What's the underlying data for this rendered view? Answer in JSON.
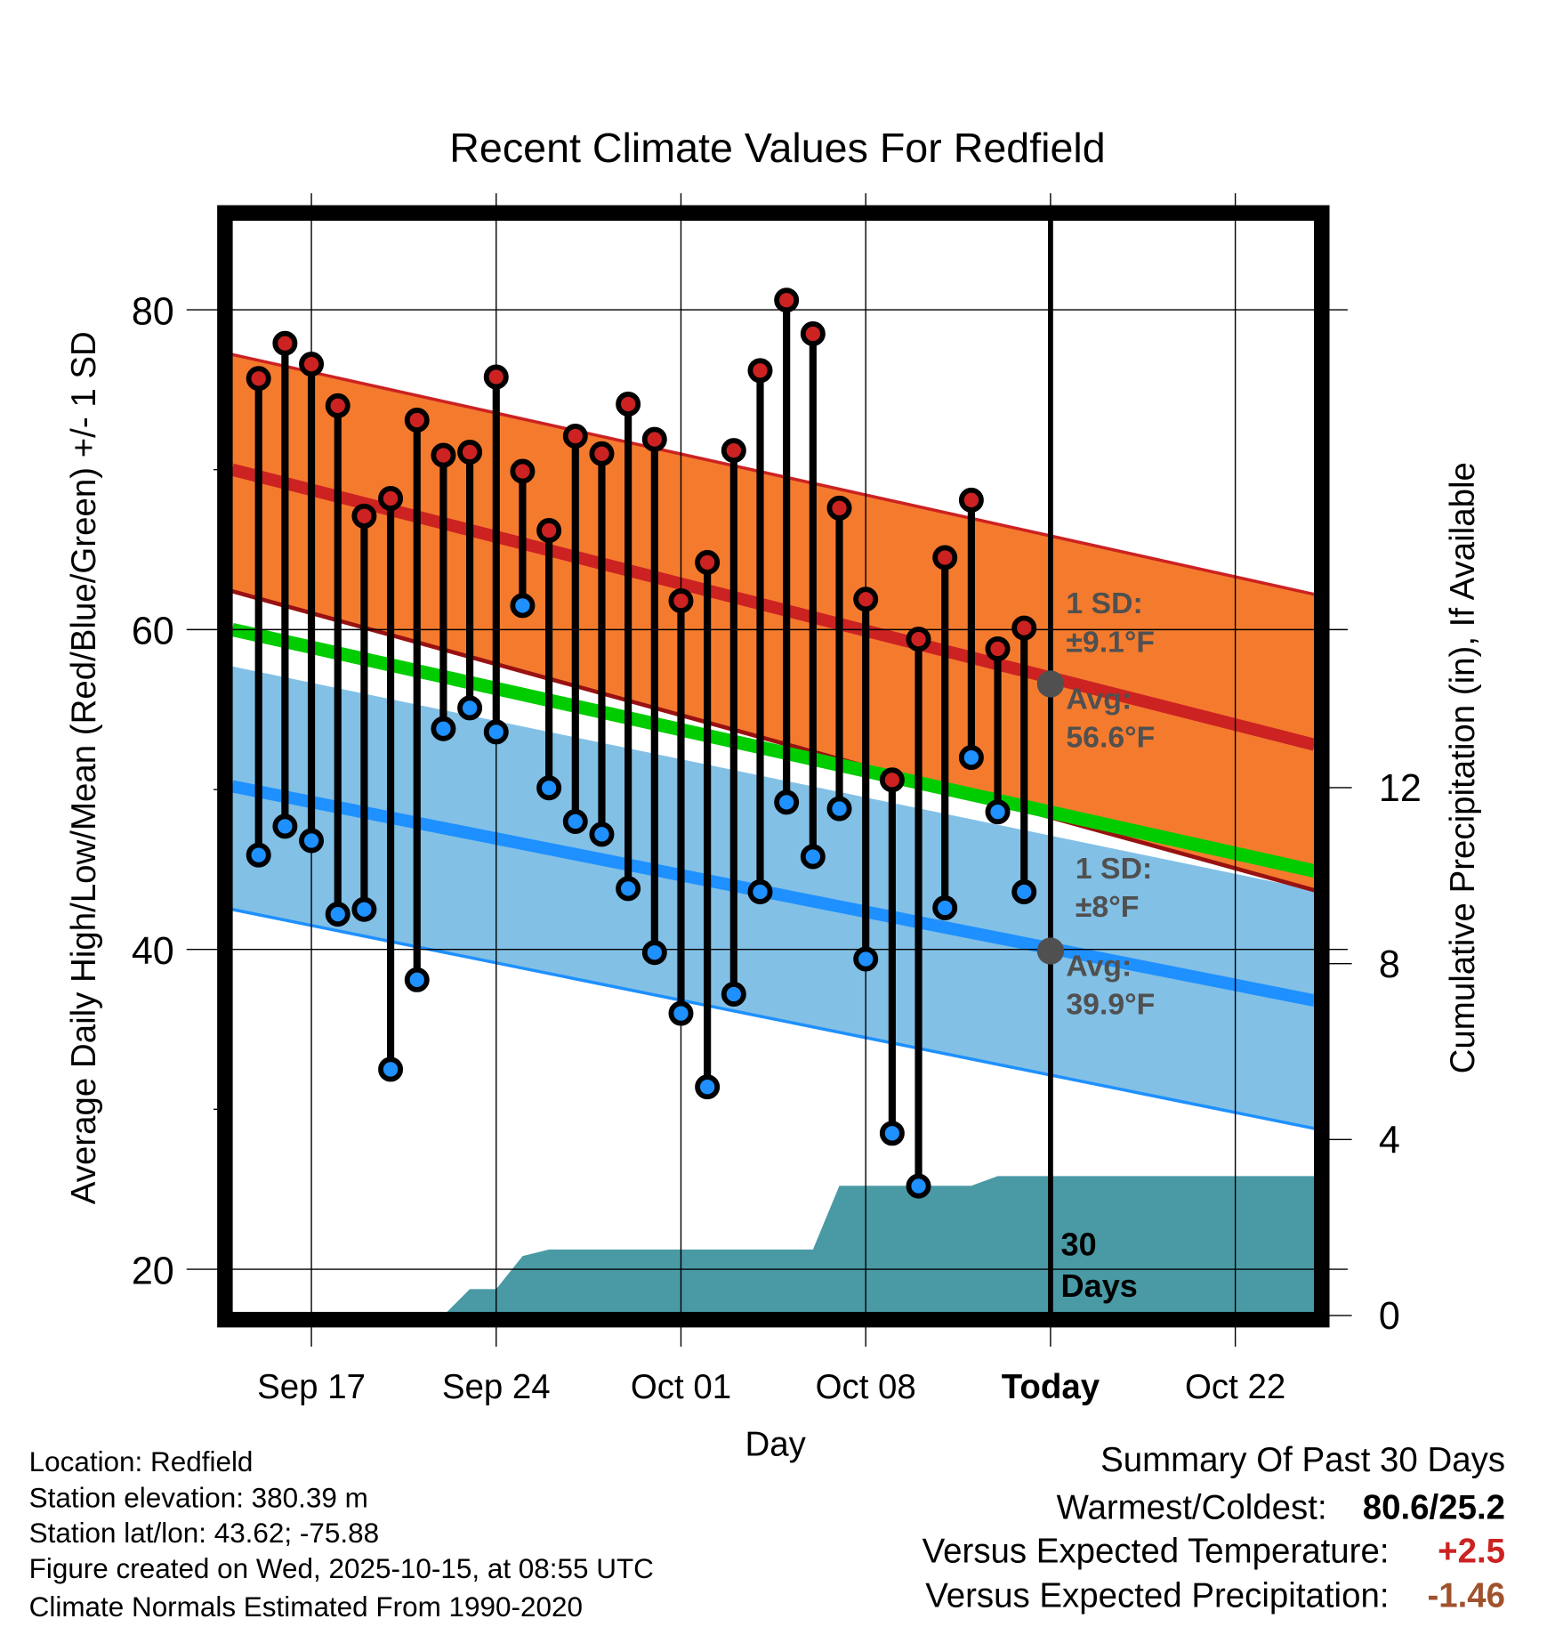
{
  "chart_data": {
    "type": "line",
    "title": "Recent Climate Values For Redfield",
    "xlabel": "Day",
    "ylabel": "Average Daily High/Low/Mean (Red/Blue/Green) +/- 1 SD",
    "y2label": "Cumulative Precipitation (in), If Available",
    "xlim": [
      "2025-09-14",
      "2025-10-25"
    ],
    "ylim": [
      17.3,
      85.6
    ],
    "y2lim": [
      0,
      24.9
    ],
    "yticks": [
      20,
      40,
      60,
      80
    ],
    "yminor": [
      30,
      50,
      70
    ],
    "y2ticks": [
      0,
      4,
      8,
      12
    ],
    "xticks": [
      {
        "date": "2025-09-17",
        "label": "Sep 17"
      },
      {
        "date": "2025-09-24",
        "label": "Sep 24"
      },
      {
        "date": "2025-10-01",
        "label": "Oct 01"
      },
      {
        "date": "2025-10-08",
        "label": "Oct 08"
      },
      {
        "date": "2025-10-15",
        "label": "Today"
      },
      {
        "date": "2025-10-22",
        "label": "Oct 22"
      }
    ],
    "today": "2025-10-15",
    "grid": true,
    "dates": [
      "2025-09-15",
      "2025-09-16",
      "2025-09-17",
      "2025-09-18",
      "2025-09-19",
      "2025-09-20",
      "2025-09-21",
      "2025-09-22",
      "2025-09-23",
      "2025-09-24",
      "2025-09-25",
      "2025-09-26",
      "2025-09-27",
      "2025-09-28",
      "2025-09-29",
      "2025-09-30",
      "2025-10-01",
      "2025-10-02",
      "2025-10-03",
      "2025-10-04",
      "2025-10-05",
      "2025-10-06",
      "2025-10-07",
      "2025-10-08",
      "2025-10-09",
      "2025-10-10",
      "2025-10-11",
      "2025-10-12",
      "2025-10-13",
      "2025-10-14"
    ],
    "series": [
      {
        "name": "Daily High",
        "color": "#cc2222",
        "values": [
          75.7,
          77.9,
          76.6,
          74.0,
          67.1,
          68.2,
          73.1,
          70.9,
          71.1,
          75.8,
          69.9,
          66.2,
          72.1,
          71.0,
          74.1,
          71.9,
          61.8,
          64.2,
          71.2,
          76.2,
          80.6,
          78.5,
          67.6,
          61.9,
          50.6,
          59.4,
          64.5,
          68.1,
          58.8,
          60.1
        ]
      },
      {
        "name": "Daily Low",
        "color": "#1e90ff",
        "values": [
          45.9,
          47.7,
          46.8,
          42.2,
          42.5,
          32.5,
          38.1,
          53.8,
          55.1,
          53.6,
          61.5,
          50.1,
          48.0,
          47.2,
          43.8,
          39.8,
          36.0,
          31.4,
          37.2,
          43.6,
          49.2,
          45.8,
          48.8,
          39.4,
          28.5,
          25.2,
          42.6,
          52.0,
          48.6,
          43.6
        ]
      },
      {
        "name": "Cumulative Precipitation",
        "color": "#4a9aa5",
        "axis": "right",
        "values": [
          0,
          0,
          0,
          0,
          0,
          0,
          0,
          0,
          0.6,
          0.6,
          1.35,
          1.5,
          1.5,
          1.5,
          1.5,
          1.5,
          1.5,
          1.5,
          1.5,
          1.5,
          1.5,
          1.5,
          2.95,
          2.95,
          2.95,
          2.95,
          2.95,
          2.95,
          3.17,
          3.17
        ]
      }
    ],
    "normals": {
      "dates": [
        "2025-09-14",
        "2025-10-25"
      ],
      "high_mean": [
        70.0,
        52.8
      ],
      "high_upper": [
        77.2,
        62.2
      ],
      "high_lower": [
        62.4,
        43.7
      ],
      "low_mean": [
        50.2,
        36.8
      ],
      "low_upper": [
        57.7,
        43.7
      ],
      "low_lower": [
        42.5,
        28.8
      ],
      "mean": [
        60.0,
        44.9
      ],
      "colors": {
        "high_band": "#f47b2e",
        "high_line": "#cc2222",
        "low_band": "#82c0e6",
        "low_line": "#1e90ff",
        "mean_line": "#00cc00",
        "precip": "#4a9aa5"
      }
    },
    "annotations": {
      "high_sd_label": "1 SD:",
      "high_sd_value": "±9.1°F",
      "high_avg_label": "Avg:",
      "high_avg_value": "56.6°F",
      "high_avg": 56.6,
      "low_sd_label": "1 SD:",
      "low_sd_value": "±8°F",
      "low_avg_label": "Avg:",
      "low_avg_value": "39.9°F",
      "low_avg": 39.9,
      "days_label_1": "30",
      "days_label_2": "Days"
    }
  },
  "info": {
    "location": "Location: Redfield",
    "elevation": "Station elevation: 380.39 m",
    "latlon": "Station lat/lon: 43.62; -75.88",
    "created": "Figure created on Wed, 2025-10-15, at 08:55 UTC",
    "normals": "Climate Normals Estimated From 1990-2020"
  },
  "summary": {
    "title": "Summary Of Past 30 Days",
    "warm_cold_label": "Warmest/Coldest:",
    "warm_cold_value": "80.6/25.2",
    "temp_label": "Versus Expected Temperature:",
    "temp_value": "+2.5",
    "temp_color": "#cc2222",
    "precip_label": "Versus Expected Precipitation:",
    "precip_value": "-1.46",
    "precip_color": "#a0522d"
  }
}
